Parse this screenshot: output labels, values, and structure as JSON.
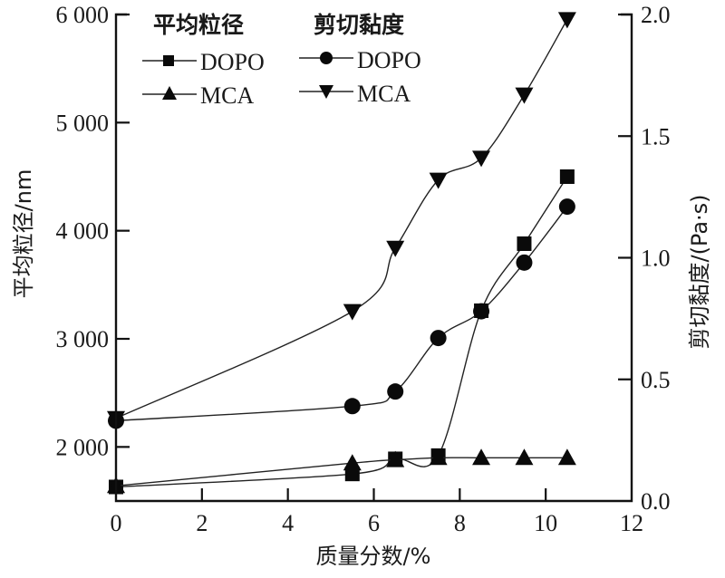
{
  "chart_data": {
    "type": "line",
    "title": "",
    "xlabel": "质量分数/%",
    "ylabel_left": "平均粒径/nm",
    "ylabel_right": "剪切黏度/(Pa·s)",
    "xlim": [
      0,
      12
    ],
    "ylim_left": [
      1500,
      6000
    ],
    "ylim_right": [
      0.0,
      2.0
    ],
    "x_ticks": [
      "0",
      "2",
      "4",
      "6",
      "8",
      "10",
      "12"
    ],
    "x_tick_values": [
      0,
      2,
      4,
      6,
      8,
      10,
      12
    ],
    "y_left_ticks": [
      "2 000",
      "3 000",
      "4 000",
      "5 000",
      "6 000"
    ],
    "y_left_tick_values": [
      2000,
      3000,
      4000,
      5000,
      6000
    ],
    "y_right_ticks": [
      "0.0",
      "0.5",
      "1.0",
      "1.5",
      "2.0"
    ],
    "y_right_tick_values": [
      0.0,
      0.5,
      1.0,
      1.5,
      2.0
    ],
    "grid": false,
    "legend": {
      "placement": "top-left",
      "groups": [
        {
          "heading": "平均粒径",
          "entries": [
            "DOPO",
            "MCA"
          ]
        },
        {
          "heading": "剪切黏度",
          "entries": [
            "DOPO",
            "MCA"
          ]
        }
      ]
    },
    "x": [
      0,
      5.5,
      6.5,
      7.5,
      8.5,
      9.5,
      10.5
    ],
    "series": [
      {
        "name": "DOPO",
        "group": "平均粒径",
        "axis": "left",
        "marker": "square",
        "values": [
          1630,
          1750,
          1890,
          1920,
          3260,
          3880,
          4500
        ]
      },
      {
        "name": "MCA",
        "group": "平均粒径",
        "axis": "left",
        "marker": "triangle-up",
        "values": [
          1640,
          1850,
          1880,
          1900,
          1900,
          1900,
          1900
        ]
      },
      {
        "name": "DOPO",
        "group": "剪切黏度",
        "axis": "right",
        "marker": "circle",
        "values": [
          0.33,
          0.39,
          0.45,
          0.67,
          0.78,
          0.98,
          1.21
        ]
      },
      {
        "name": "MCA",
        "group": "剪切黏度",
        "axis": "right",
        "marker": "triangle-down",
        "values": [
          0.34,
          0.78,
          1.04,
          1.32,
          1.41,
          1.67,
          1.98
        ]
      }
    ],
    "colors": {
      "ink": "#0a0a0a",
      "background": "#ffffff"
    }
  }
}
